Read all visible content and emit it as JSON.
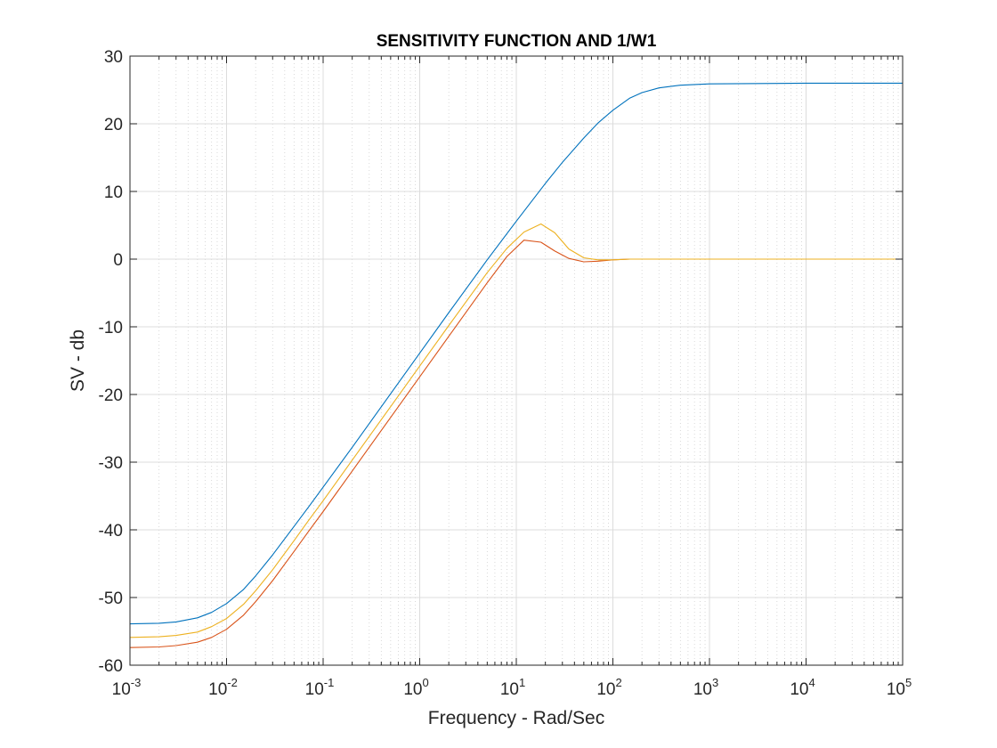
{
  "chart_data": {
    "type": "line",
    "title": "SENSITIVITY FUNCTION AND 1/W1",
    "xlabel": "Frequency - Rad/Sec",
    "ylabel": "SV - db",
    "xscale": "log",
    "xlim": [
      0.001,
      100000
    ],
    "ylim": [
      -60,
      30
    ],
    "grid": true,
    "minor_grid": true,
    "x_ticks": [
      {
        "base": "10",
        "exp": "-3"
      },
      {
        "base": "10",
        "exp": "-2"
      },
      {
        "base": "10",
        "exp": "-1"
      },
      {
        "base": "10",
        "exp": "0"
      },
      {
        "base": "10",
        "exp": "1"
      },
      {
        "base": "10",
        "exp": "2"
      },
      {
        "base": "10",
        "exp": "3"
      },
      {
        "base": "10",
        "exp": "4"
      },
      {
        "base": "10",
        "exp": "5"
      }
    ],
    "y_ticks": [
      "30",
      "20",
      "10",
      "0",
      "-10",
      "-20",
      "-30",
      "-40",
      "-50",
      "-60"
    ],
    "series": [
      {
        "color": "#0072bd",
        "x": [
          0.001,
          0.002,
          0.003,
          0.005,
          0.007,
          0.01,
          0.015,
          0.02,
          0.03,
          0.05,
          0.07,
          0.1,
          0.2,
          0.5,
          1,
          2,
          5,
          10,
          20,
          30,
          50,
          70,
          100,
          150,
          200,
          300,
          500,
          1000,
          10000,
          100000
        ],
        "y": [
          -53.9,
          -53.8,
          -53.6,
          -53.0,
          -52.2,
          -50.9,
          -48.8,
          -46.8,
          -43.7,
          -39.5,
          -36.7,
          -33.7,
          -27.8,
          -19.9,
          -13.9,
          -7.9,
          -0.1,
          5.6,
          11.2,
          14.3,
          17.9,
          20.1,
          22.0,
          23.8,
          24.6,
          25.3,
          25.7,
          25.9,
          26.0,
          26.0
        ]
      },
      {
        "color": "#d95319",
        "x": [
          0.001,
          0.002,
          0.003,
          0.005,
          0.007,
          0.01,
          0.015,
          0.02,
          0.03,
          0.05,
          0.07,
          0.1,
          0.2,
          0.5,
          1,
          2,
          5,
          8,
          12,
          18,
          25,
          35,
          50,
          70,
          100,
          150,
          200,
          1000,
          100000
        ],
        "y": [
          -57.4,
          -57.3,
          -57.1,
          -56.6,
          -55.9,
          -54.7,
          -52.6,
          -50.6,
          -47.5,
          -43.2,
          -40.3,
          -37.3,
          -31.3,
          -23.4,
          -17.4,
          -11.4,
          -3.5,
          0.4,
          2.8,
          2.5,
          1.2,
          0.1,
          -0.4,
          -0.3,
          -0.1,
          0.0,
          0.0,
          0.0,
          0.0
        ]
      },
      {
        "color": "#edb120",
        "x": [
          0.001,
          0.002,
          0.003,
          0.005,
          0.007,
          0.01,
          0.015,
          0.02,
          0.03,
          0.05,
          0.07,
          0.1,
          0.2,
          0.5,
          1,
          2,
          5,
          8,
          12,
          18,
          25,
          35,
          50,
          70,
          100,
          150,
          200,
          1000,
          100000
        ],
        "y": [
          -55.9,
          -55.8,
          -55.6,
          -55.1,
          -54.3,
          -53.1,
          -51.0,
          -49.0,
          -45.9,
          -41.6,
          -38.7,
          -35.7,
          -29.7,
          -21.8,
          -15.8,
          -9.8,
          -2.0,
          1.6,
          4.0,
          5.2,
          3.9,
          1.5,
          0.2,
          -0.1,
          -0.1,
          0.0,
          0.0,
          0.0,
          0.0
        ]
      }
    ]
  }
}
